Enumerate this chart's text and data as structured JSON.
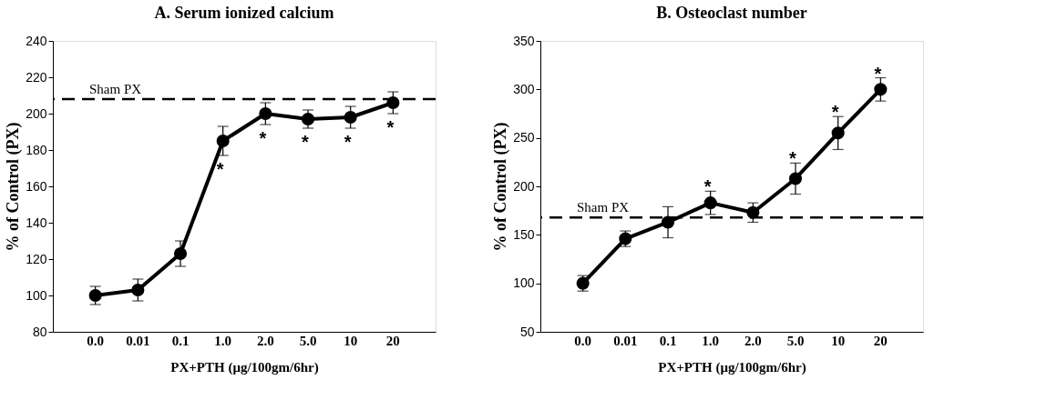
{
  "chart_data": [
    {
      "type": "line",
      "title": "A. Serum ionized calcium",
      "xlabel": "PX+PTH (μg/100gm/6hr)",
      "ylabel": "% of Control (PX)",
      "categories": [
        "0.0",
        "0.01",
        "0.1",
        "1.0",
        "2.0",
        "5.0",
        "10",
        "20"
      ],
      "series": [
        {
          "color": "#000000",
          "values": [
            100,
            103,
            123,
            185,
            200,
            197,
            198,
            206
          ],
          "errors": [
            5,
            6,
            7,
            8,
            6,
            5,
            6,
            6
          ]
        }
      ],
      "ylim": [
        80,
        240
      ],
      "yticks": [
        80,
        100,
        120,
        140,
        160,
        180,
        200,
        220,
        240
      ],
      "ref_lines": [
        {
          "axis": "y",
          "value": 208,
          "label": "Sham PX",
          "color": "#000000",
          "line_style": "dashed"
        }
      ],
      "annotations": [
        {
          "text": "*",
          "x": "1.0",
          "y": 185
        },
        {
          "text": "*",
          "x": "2.0",
          "y": 200
        },
        {
          "text": "*",
          "x": "5.0",
          "y": 197
        },
        {
          "text": "*",
          "x": "10",
          "y": 198
        },
        {
          "text": "*",
          "x": "20",
          "y": 206
        }
      ],
      "marker": "circle",
      "line_style": "solid",
      "grid": false,
      "legend": false
    },
    {
      "type": "line",
      "title": "B. Osteoclast number",
      "xlabel": "PX+PTH (μg/100gm/6hr)",
      "ylabel": "% of Control (PX)",
      "categories": [
        "0.0",
        "0.01",
        "0.1",
        "1.0",
        "2.0",
        "5.0",
        "10",
        "20"
      ],
      "series": [
        {
          "color": "#000000",
          "values": [
            100,
            146,
            163,
            183,
            173,
            208,
            255,
            300
          ],
          "errors": [
            8,
            8,
            16,
            12,
            10,
            16,
            17,
            12
          ]
        }
      ],
      "ylim": [
        50,
        350
      ],
      "yticks": [
        50,
        100,
        150,
        200,
        250,
        300,
        350
      ],
      "ref_lines": [
        {
          "axis": "y",
          "value": 168,
          "label": "Sham PX",
          "color": "#000000",
          "line_style": "dashed"
        }
      ],
      "annotations": [
        {
          "text": "*",
          "x": "1.0",
          "y": 183
        },
        {
          "text": "*",
          "x": "5.0",
          "y": 208
        },
        {
          "text": "*",
          "x": "10",
          "y": 255
        },
        {
          "text": "*",
          "x": "20",
          "y": 300
        }
      ],
      "marker": "circle",
      "line_style": "solid",
      "grid": false,
      "legend": false
    }
  ]
}
